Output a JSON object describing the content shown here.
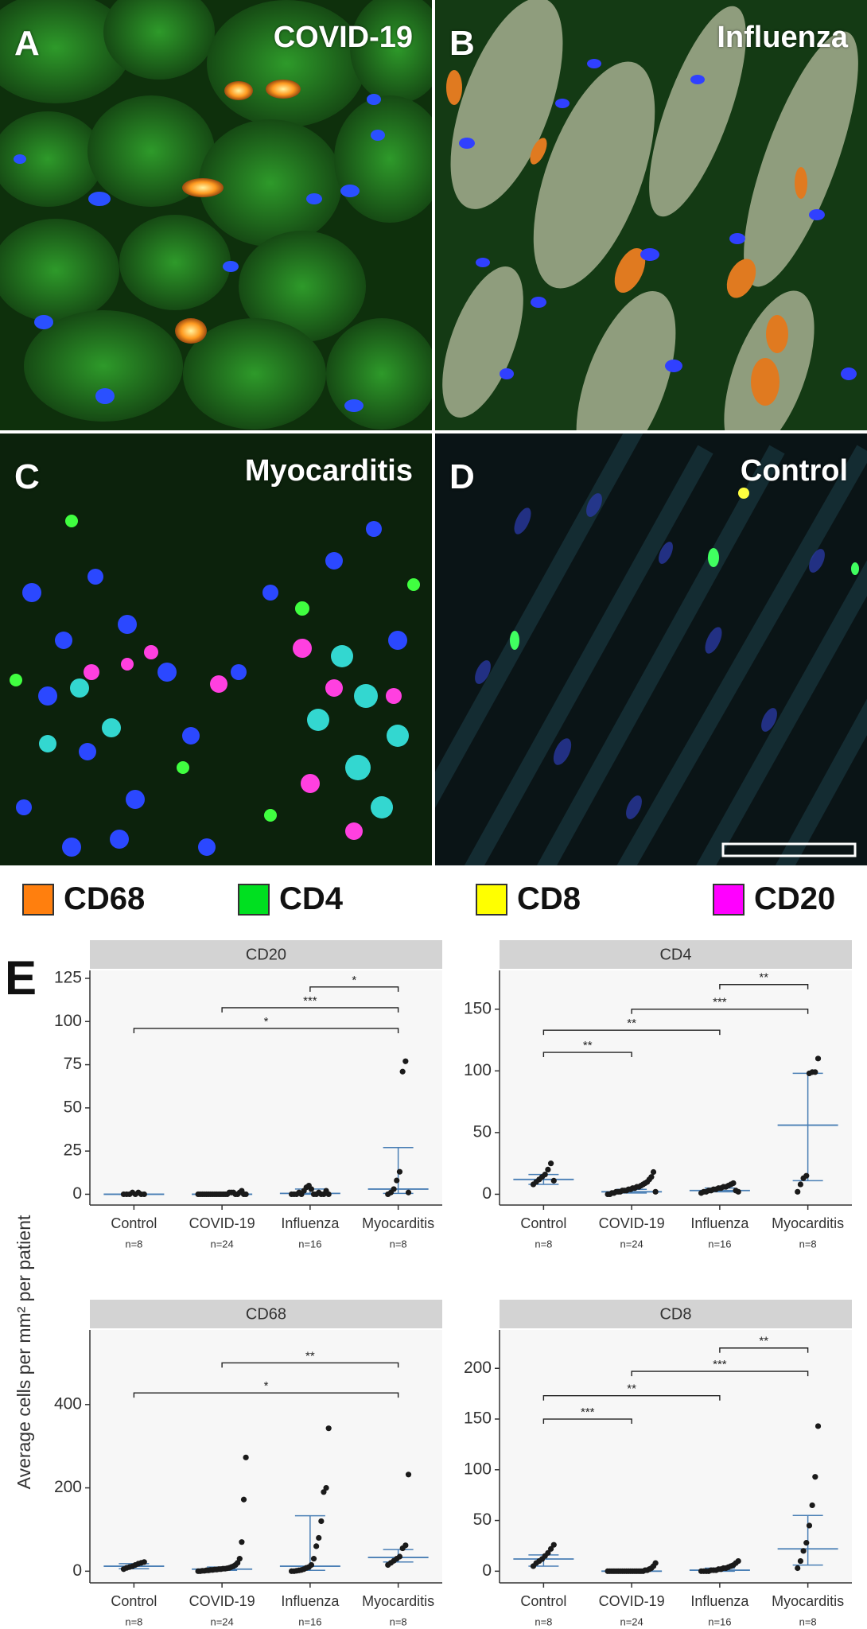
{
  "panels": [
    {
      "letter": "A",
      "title": "COVID-19"
    },
    {
      "letter": "B",
      "title": "Influenza"
    },
    {
      "letter": "C",
      "title": "Myocarditis"
    },
    {
      "letter": "D",
      "title": "Control"
    }
  ],
  "legend": [
    {
      "label": "CD68",
      "color": "#ff7f0e"
    },
    {
      "label": "CD4",
      "color": "#00e020"
    },
    {
      "label": "CD8",
      "color": "#ffff00"
    },
    {
      "label": "CD20",
      "color": "#ff00ff"
    }
  ],
  "panel_e_letter": "E",
  "y_axis_title": "Average cells per mm² per patient",
  "colors": {
    "facet_header": "#d3d3d3",
    "plot_bg": "#f7f7f7",
    "summary_line": "#4a7fb5",
    "points": "#1a1a1a"
  },
  "chart_data": [
    {
      "type": "scatter",
      "title": "CD20",
      "categories": [
        "Control",
        "COVID-19",
        "Influenza",
        "Myocarditis"
      ],
      "n_labels": [
        "n=8",
        "n=24",
        "n=16",
        "n=8"
      ],
      "ylim": [
        0,
        125
      ],
      "yticks": [
        0,
        25,
        50,
        75,
        100,
        125
      ],
      "points": [
        [
          0,
          0,
          0,
          1,
          0,
          1,
          0,
          0
        ],
        [
          0,
          0,
          0,
          0,
          0,
          0,
          0,
          0,
          0,
          0,
          0,
          0,
          0,
          0,
          0,
          1,
          1,
          1,
          0,
          0,
          1,
          2,
          0,
          0
        ],
        [
          0,
          0,
          0,
          1,
          0,
          2,
          4,
          5,
          3,
          0,
          0,
          1,
          0,
          0,
          2,
          0
        ],
        [
          0,
          1,
          3,
          8,
          13,
          71,
          77,
          1
        ]
      ],
      "summary": [
        {
          "median": 0,
          "low": 0,
          "high": 0
        },
        {
          "median": 0,
          "low": 0,
          "high": 0.5
        },
        {
          "median": 0.5,
          "low": 0,
          "high": 3
        },
        {
          "median": 3,
          "low": 0.5,
          "high": 27
        }
      ],
      "comparisons": [
        {
          "from": "Influenza",
          "to": "Myocarditis",
          "y": 120,
          "label": "*"
        },
        {
          "from": "COVID-19",
          "to": "Myocarditis",
          "y": 108,
          "label": "***"
        },
        {
          "from": "Control",
          "to": "Myocarditis",
          "y": 96,
          "label": "*"
        }
      ]
    },
    {
      "type": "scatter",
      "title": "CD4",
      "categories": [
        "Control",
        "COVID-19",
        "Influenza",
        "Myocarditis"
      ],
      "n_labels": [
        "n=8",
        "n=24",
        "n=16",
        "n=8"
      ],
      "ylim": [
        0,
        175
      ],
      "yticks": [
        0,
        50,
        100,
        150
      ],
      "points": [
        [
          8,
          10,
          12,
          14,
          16,
          20,
          25,
          11
        ],
        [
          0,
          0,
          1,
          1,
          2,
          2,
          2,
          3,
          3,
          3,
          4,
          4,
          5,
          5,
          6,
          6,
          7,
          8,
          9,
          10,
          12,
          14,
          18,
          2
        ],
        [
          1,
          2,
          2,
          3,
          3,
          4,
          4,
          5,
          5,
          6,
          6,
          7,
          8,
          9,
          3,
          2
        ],
        [
          2,
          8,
          13,
          15,
          98,
          99,
          99,
          110
        ]
      ],
      "summary": [
        {
          "median": 12,
          "low": 8,
          "high": 16
        },
        {
          "median": 2,
          "low": 1,
          "high": 4
        },
        {
          "median": 3,
          "low": 2,
          "high": 5
        },
        {
          "median": 56,
          "low": 11,
          "high": 98
        }
      ],
      "comparisons": [
        {
          "from": "Influenza",
          "to": "Myocarditis",
          "y": 170,
          "label": "**"
        },
        {
          "from": "COVID-19",
          "to": "Myocarditis",
          "y": 150,
          "label": "***"
        },
        {
          "from": "Control",
          "to": "Influenza",
          "y": 133,
          "label": "**"
        },
        {
          "from": "Control",
          "to": "COVID-19",
          "y": 115,
          "label": "**"
        }
      ]
    },
    {
      "type": "scatter",
      "title": "CD68",
      "categories": [
        "Control",
        "COVID-19",
        "Influenza",
        "Myocarditis"
      ],
      "n_labels": [
        "n=8",
        "n=24",
        "n=16",
        "n=8"
      ],
      "ylim": [
        0,
        560
      ],
      "yticks": [
        0,
        200,
        400
      ],
      "points": [
        [
          5,
          8,
          10,
          12,
          15,
          18,
          20,
          22
        ],
        [
          0,
          0,
          1,
          1,
          2,
          2,
          3,
          3,
          4,
          4,
          5,
          5,
          6,
          6,
          7,
          8,
          10,
          12,
          15,
          20,
          30,
          70,
          172,
          273
        ],
        [
          0,
          0,
          1,
          2,
          3,
          5,
          8,
          10,
          15,
          30,
          60,
          80,
          120,
          190,
          200,
          343
        ],
        [
          15,
          20,
          25,
          30,
          35,
          55,
          62,
          232
        ]
      ],
      "summary": [
        {
          "median": 12,
          "low": 6,
          "high": 18
        },
        {
          "median": 5,
          "low": 2,
          "high": 10
        },
        {
          "median": 12,
          "low": 2,
          "high": 133
        },
        {
          "median": 33,
          "low": 22,
          "high": 52
        }
      ],
      "comparisons": [
        {
          "from": "COVID-19",
          "to": "Myocarditis",
          "y": 500,
          "label": "**"
        },
        {
          "from": "Control",
          "to": "Myocarditis",
          "y": 428,
          "label": "*"
        }
      ]
    },
    {
      "type": "scatter",
      "title": "CD8",
      "categories": [
        "Control",
        "COVID-19",
        "Influenza",
        "Myocarditis"
      ],
      "n_labels": [
        "n=8",
        "n=24",
        "n=16",
        "n=8"
      ],
      "ylim": [
        0,
        230
      ],
      "yticks": [
        0,
        50,
        100,
        150,
        200
      ],
      "points": [
        [
          5,
          8,
          10,
          12,
          15,
          18,
          22,
          26
        ],
        [
          0,
          0,
          0,
          0,
          0,
          0,
          0,
          0,
          0,
          0,
          0,
          0,
          0,
          0,
          0,
          0,
          0,
          0,
          1,
          1,
          2,
          3,
          5,
          8
        ],
        [
          0,
          0,
          0,
          0,
          1,
          1,
          1,
          2,
          2,
          3,
          3,
          4,
          5,
          6,
          8,
          10
        ],
        [
          3,
          10,
          20,
          28,
          45,
          65,
          93,
          143
        ]
      ],
      "summary": [
        {
          "median": 12,
          "low": 5,
          "high": 16
        },
        {
          "median": 0,
          "low": 0,
          "high": 0
        },
        {
          "median": 1,
          "low": 0,
          "high": 3
        },
        {
          "median": 22,
          "low": 6,
          "high": 55
        }
      ],
      "comparisons": [
        {
          "from": "Influenza",
          "to": "Myocarditis",
          "y": 220,
          "label": "**"
        },
        {
          "from": "COVID-19",
          "to": "Myocarditis",
          "y": 197,
          "label": "***"
        },
        {
          "from": "Control",
          "to": "Influenza",
          "y": 173,
          "label": "**"
        },
        {
          "from": "Control",
          "to": "COVID-19",
          "y": 150,
          "label": "***"
        }
      ]
    }
  ]
}
